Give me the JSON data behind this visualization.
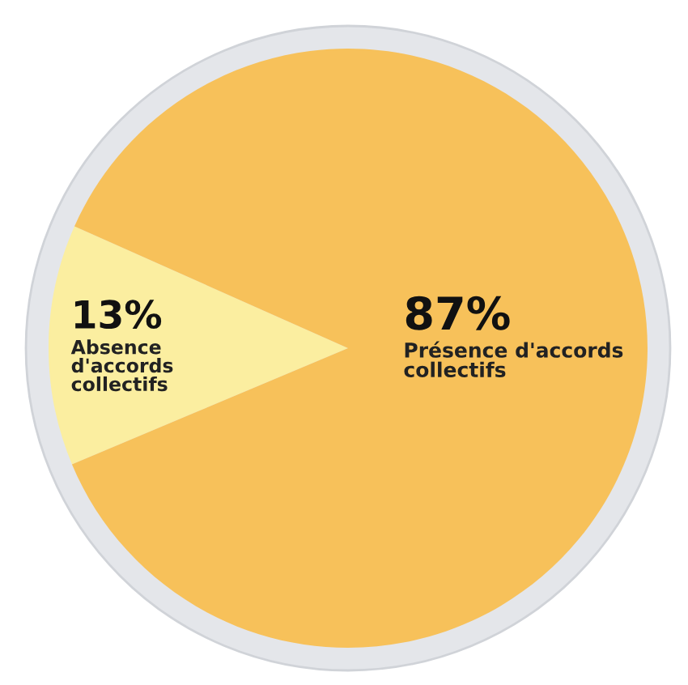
{
  "chart_data": {
    "type": "pie",
    "categories": [
      "Absence\nd'accords\ncollectifs",
      "Présence d'accords\ncollectifs"
    ],
    "values": [
      13,
      87
    ],
    "colors": [
      "#fbeea0",
      "#f7c15a"
    ],
    "value_labels": [
      "13%",
      "87%"
    ],
    "legend": false
  }
}
